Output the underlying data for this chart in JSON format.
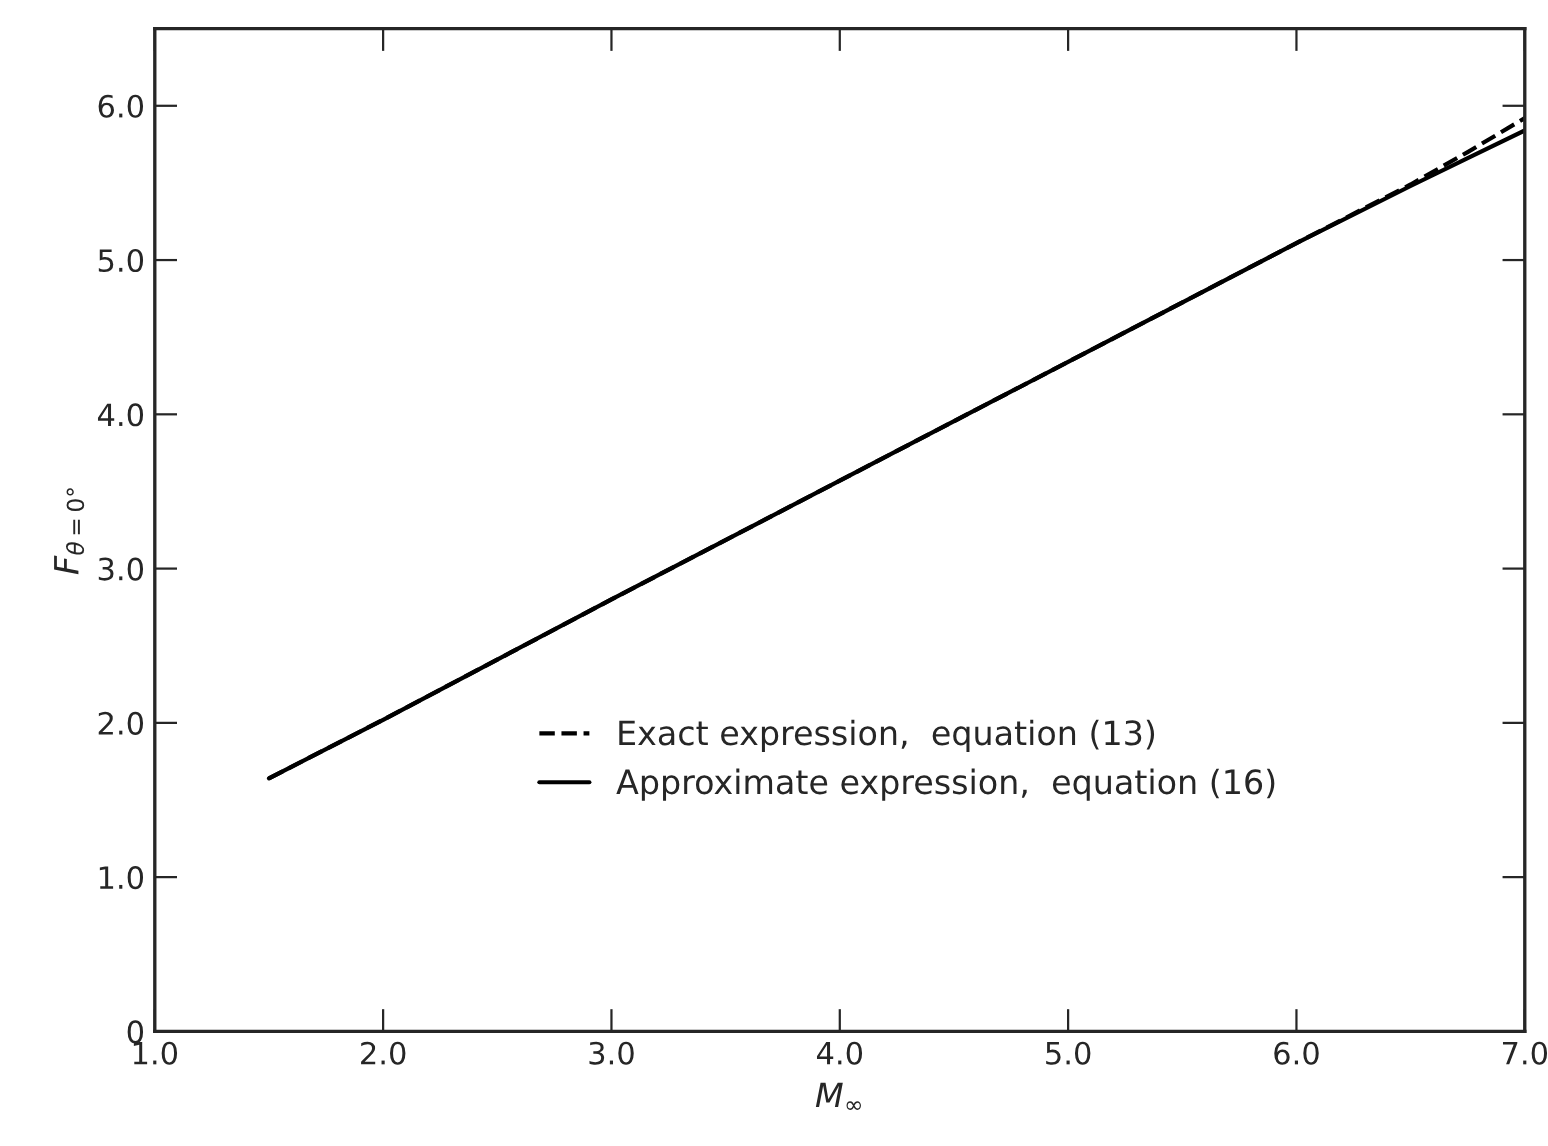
{
  "chart_data": {
    "type": "line",
    "xlabel": "M$_{∞}$",
    "ylabel": "F$_{θ=0°}$",
    "x": [
      1.5,
      2.0,
      3.0,
      4.0,
      5.0,
      6.0,
      6.5,
      6.75,
      7.0
    ],
    "series": [
      {
        "name": "Exact expression,  equation (13)",
        "color": "#000000",
        "line_style": "dashed",
        "values": [
          1.64,
          2.02,
          2.8,
          3.57,
          4.34,
          5.11,
          5.49,
          5.7,
          5.92
        ]
      },
      {
        "name": "Approximate expression,  equation (16)",
        "color": "#000000",
        "line_style": "solid",
        "values": [
          1.64,
          2.02,
          2.8,
          3.57,
          4.34,
          5.11,
          5.48,
          5.66,
          5.84
        ]
      }
    ],
    "xlim": [
      1.0,
      7.0
    ],
    "ylim": [
      0,
      6.5
    ],
    "xticks": [
      {
        "value": 1,
        "label": "1.0"
      },
      {
        "value": 2,
        "label": "2.0"
      },
      {
        "value": 3,
        "label": "3.0"
      },
      {
        "value": 4,
        "label": "4.0"
      },
      {
        "value": 5,
        "label": "5.0"
      },
      {
        "value": 6,
        "label": "6.0"
      },
      {
        "value": 7,
        "label": "7.0"
      }
    ],
    "yticks": [
      0,
      {
        "value": 1,
        "label": "1.0"
      },
      {
        "value": 2,
        "label": "2.0"
      },
      {
        "value": 3,
        "label": "3.0"
      },
      {
        "value": 4,
        "label": "4.0"
      },
      {
        "value": 5,
        "label": "5.0"
      },
      {
        "value": 6,
        "label": "6.0"
      }
    ],
    "grid": false,
    "legend": "bottom",
    "marker": "none"
  }
}
